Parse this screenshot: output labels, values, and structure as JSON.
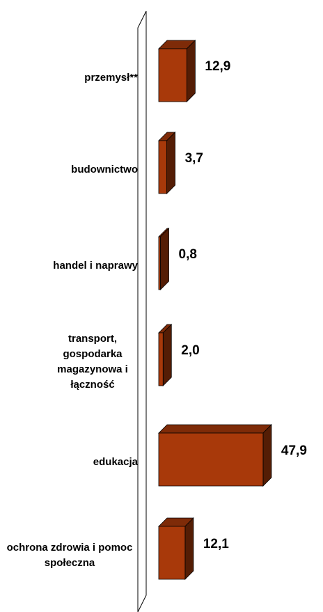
{
  "chart_data": {
    "type": "bar3d",
    "categories": [
      "przemysł**",
      "budownictwo",
      "handel i naprawy",
      "transport, gospodarka magazynowa i łączność",
      "edukacja",
      "ochrona zdrowia i pomoc społeczna"
    ],
    "values": [
      12.9,
      3.7,
      0.8,
      2.0,
      47.9,
      12.1
    ],
    "value_labels": [
      "12,9",
      "3,7",
      "0,8",
      "2,0",
      "47,9",
      "12,1"
    ],
    "color": "#a8390a"
  }
}
